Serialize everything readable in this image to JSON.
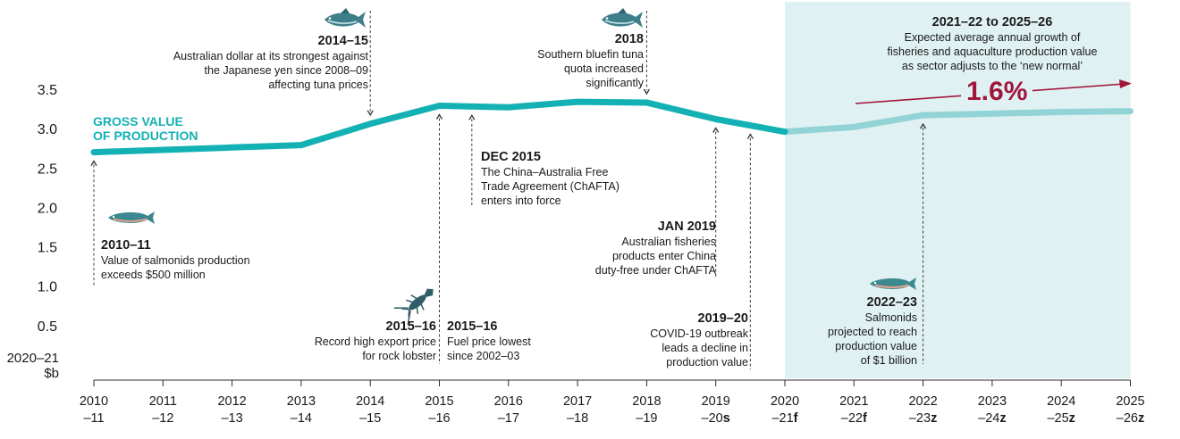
{
  "chart_data": {
    "type": "line",
    "title": "",
    "ylabel": "2020–21 $b",
    "ylabel_lines": [
      "2020–21",
      "$b"
    ],
    "ylim": [
      0,
      3.5
    ],
    "yticks": [
      "0.5",
      "1.0",
      "1.5",
      "2.0",
      "2.5",
      "3.0",
      "3.5"
    ],
    "x_labels": [
      [
        "2010",
        "–11"
      ],
      [
        "2011",
        "–12"
      ],
      [
        "2012",
        "–13"
      ],
      [
        "2013",
        "–14"
      ],
      [
        "2014",
        "–15"
      ],
      [
        "2015",
        "–16"
      ],
      [
        "2016",
        "–17"
      ],
      [
        "2017",
        "–18"
      ],
      [
        "2018",
        "–19"
      ],
      [
        "2019",
        "–20s"
      ],
      [
        "2020",
        "–21f"
      ],
      [
        "2021",
        "–22f"
      ],
      [
        "2022",
        "–23z"
      ],
      [
        "2023",
        "–24z"
      ],
      [
        "2024",
        "–25z"
      ],
      [
        "2025",
        "–26z"
      ]
    ],
    "series": [
      {
        "name": "GROSS VALUE OF PRODUCTION",
        "label_lines": [
          "GROSS VALUE",
          "OF PRODUCTION"
        ],
        "color": "#14b1b4",
        "projection_color": "#92d3d6",
        "projection_start_index": 10,
        "values": [
          2.7,
          2.73,
          2.76,
          2.79,
          3.06,
          3.29,
          3.27,
          3.34,
          3.33,
          3.12,
          2.96,
          3.02,
          3.17,
          3.19,
          3.21,
          3.22
        ]
      }
    ],
    "projection_shading": {
      "from_index": 10,
      "to_index": 15,
      "color": "#e0f1f3"
    },
    "growth": {
      "title": "2021–22 to 2025–26",
      "text_lines": [
        "Expected average annual growth of",
        "fisheries and aquaculture production value",
        "as sector adjusts to the ‘new normal’"
      ],
      "value": "1.6%",
      "color": "#a0163a"
    },
    "annotations": [
      {
        "id": "a2014",
        "heading": "2014–15",
        "lines": [
          "Australian dollar at its strongest against",
          "the Japanese yen since 2008–09",
          "affecting tuna prices"
        ],
        "icon": "tuna-icon"
      },
      {
        "id": "a2018",
        "heading": "2018",
        "lines": [
          "Southern bluefin tuna",
          "quota increased",
          "significantly"
        ],
        "icon": "tuna-icon"
      },
      {
        "id": "adec2015",
        "heading": "DEC 2015",
        "lines": [
          "The China–Australia Free",
          "Trade Agreement (ChAFTA)",
          "enters into force"
        ]
      },
      {
        "id": "ajan2019",
        "heading": "JAN 2019",
        "lines": [
          "Australian fisheries",
          "products enter China",
          "duty-free under ChAFTA"
        ]
      },
      {
        "id": "a2010",
        "heading": "2010–11",
        "lines": [
          "Value of salmonids production",
          "exceeds $500 million"
        ],
        "icon": "salmon-icon"
      },
      {
        "id": "a2015lob",
        "heading": "2015–16",
        "lines": [
          "Record high export price",
          "for rock lobster"
        ],
        "icon": "lobster-icon"
      },
      {
        "id": "a2015fuel",
        "heading": "2015–16",
        "lines": [
          "Fuel price lowest",
          "since 2002–03"
        ]
      },
      {
        "id": "a2019",
        "heading": "2019–20",
        "lines": [
          "COVID-19 outbreak",
          "leads a decline in",
          "production value"
        ]
      },
      {
        "id": "a2022",
        "heading": "2022–23",
        "lines": [
          "Salmonids",
          "projected to reach",
          "production value",
          "of $1 billion"
        ],
        "icon": "salmon-icon"
      }
    ]
  }
}
